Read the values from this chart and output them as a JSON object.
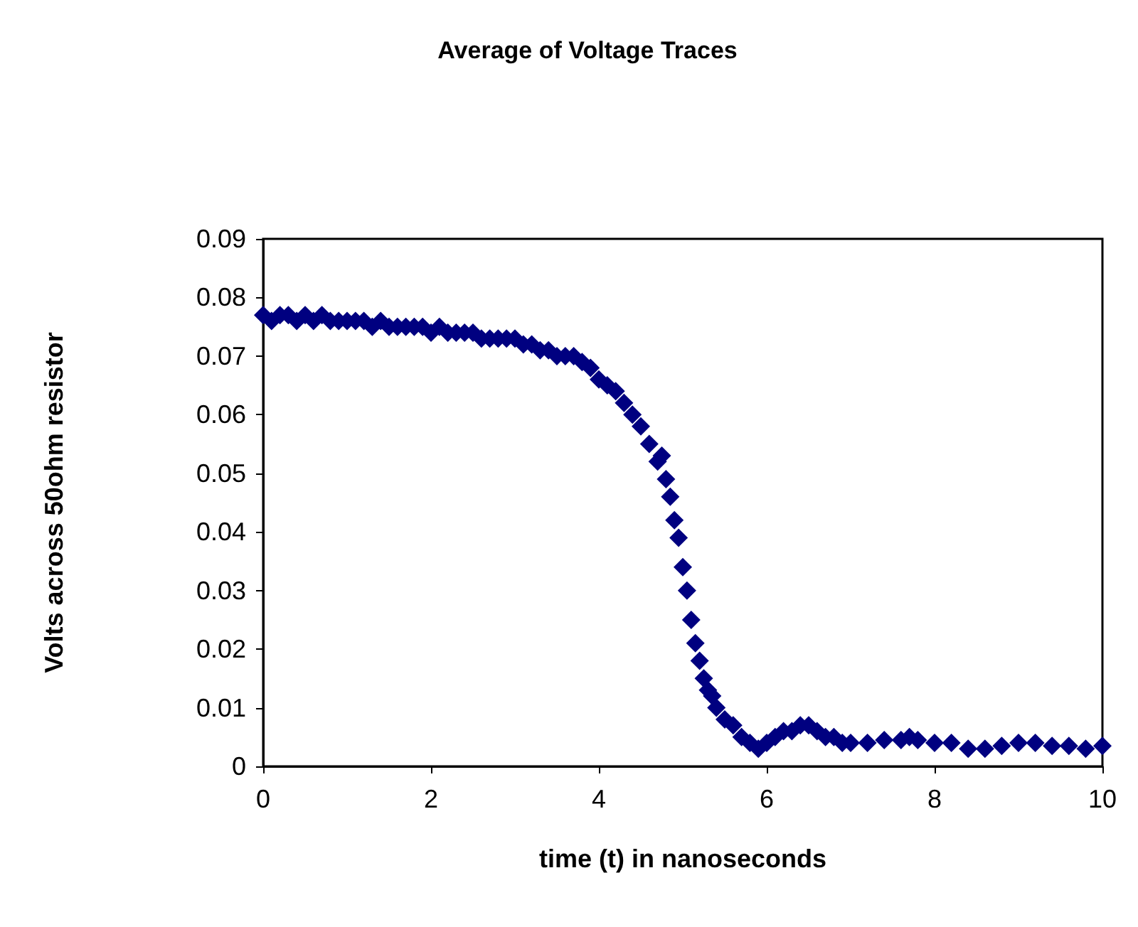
{
  "chart_data": {
    "type": "scatter",
    "title": "Average of Voltage Traces",
    "xlabel": "time (t) in nanoseconds",
    "ylabel": "Volts across 50ohm resistor",
    "xlim": [
      0,
      10
    ],
    "xticks": [
      0,
      2,
      4,
      6,
      8,
      10
    ],
    "ylim": [
      0,
      0.09
    ],
    "yticks": [
      0,
      0.01,
      0.02,
      0.03,
      0.04,
      0.05,
      0.06,
      0.07,
      0.08,
      0.09
    ],
    "grid": false,
    "marker": "diamond",
    "series": [
      {
        "color": "#000080",
        "x": [
          0,
          0.1,
          0.2,
          0.3,
          0.4,
          0.5,
          0.6,
          0.7,
          0.8,
          0.9,
          1,
          1.1,
          1.2,
          1.3,
          1.4,
          1.5,
          1.6,
          1.7,
          1.8,
          1.9,
          2,
          2.1,
          2.2,
          2.3,
          2.4,
          2.5,
          2.6,
          2.7,
          2.8,
          2.9,
          3,
          3.1,
          3.2,
          3.3,
          3.4,
          3.5,
          3.6,
          3.7,
          3.8,
          3.9,
          4,
          4.1,
          4.2,
          4.3,
          4.4,
          4.5,
          4.6,
          4.7,
          4.75,
          4.8,
          4.85,
          4.9,
          4.95,
          5,
          5.05,
          5.1,
          5.15,
          5.2,
          5.25,
          5.3,
          5.35,
          5.4,
          5.5,
          5.6,
          5.7,
          5.8,
          5.9,
          6,
          6.1,
          6.2,
          6.3,
          6.4,
          6.5,
          6.6,
          6.7,
          6.8,
          6.9,
          7,
          7.2,
          7.4,
          7.6,
          7.7,
          7.8,
          8,
          8.2,
          8.4,
          8.6,
          8.8,
          9,
          9.2,
          9.4,
          9.6,
          9.8,
          10
        ],
        "values": [
          0.077,
          0.076,
          0.077,
          0.077,
          0.076,
          0.077,
          0.076,
          0.077,
          0.076,
          0.076,
          0.076,
          0.076,
          0.076,
          0.075,
          0.076,
          0.075,
          0.075,
          0.075,
          0.075,
          0.075,
          0.074,
          0.075,
          0.074,
          0.074,
          0.074,
          0.074,
          0.073,
          0.073,
          0.073,
          0.073,
          0.073,
          0.072,
          0.072,
          0.071,
          0.071,
          0.07,
          0.07,
          0.07,
          0.069,
          0.068,
          0.066,
          0.065,
          0.064,
          0.062,
          0.06,
          0.058,
          0.055,
          0.052,
          0.053,
          0.049,
          0.046,
          0.042,
          0.039,
          0.034,
          0.03,
          0.025,
          0.021,
          0.018,
          0.015,
          0.013,
          0.012,
          0.01,
          0.008,
          0.007,
          0.005,
          0.004,
          0.003,
          0.004,
          0.005,
          0.006,
          0.006,
          0.007,
          0.007,
          0.006,
          0.005,
          0.005,
          0.004,
          0.004,
          0.004,
          0.0045,
          0.0045,
          0.005,
          0.0045,
          0.004,
          0.004,
          0.003,
          0.003,
          0.0035,
          0.004,
          0.004,
          0.0035,
          0.0035,
          0.003,
          0.0035
        ]
      }
    ]
  }
}
